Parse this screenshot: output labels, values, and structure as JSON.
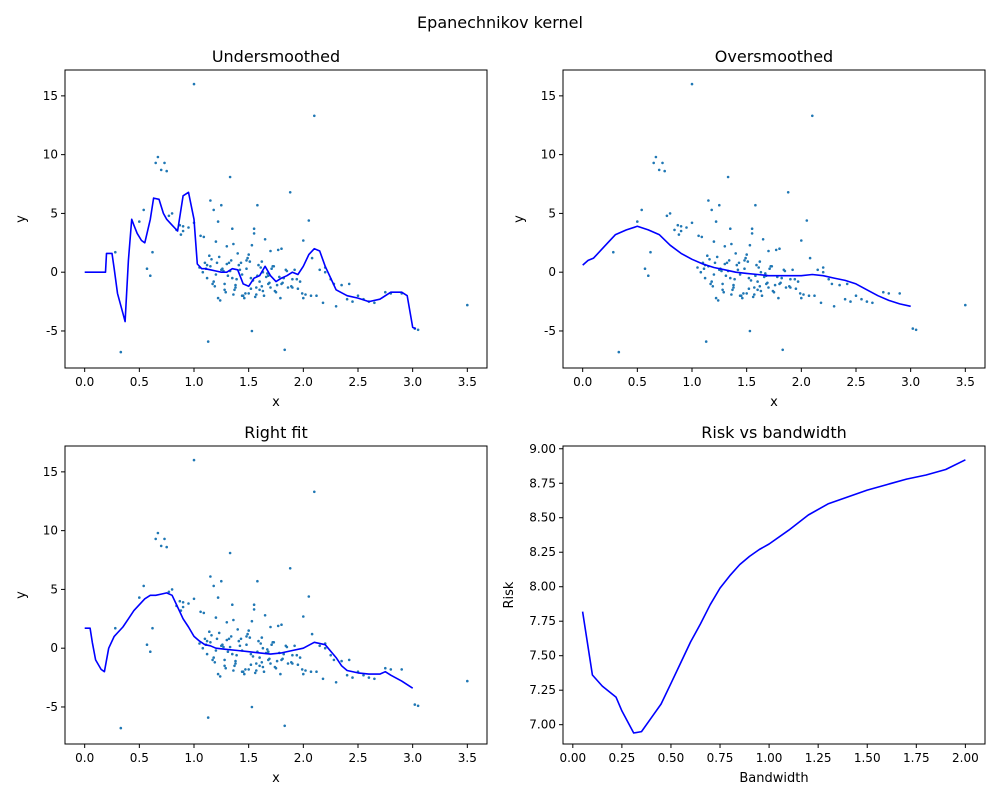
{
  "figure": {
    "suptitle": "Epanechnikov kernel"
  },
  "colors": {
    "fit_line": "#0000ff",
    "scatter": "#1f77b4",
    "risk_line": "#0000ff",
    "axes": "#000000"
  },
  "chart_data": [
    {
      "type": "scatter",
      "title": "Undersmoothed",
      "xlabel": "x",
      "ylabel": "y",
      "xlim": [
        -0.18,
        3.68
      ],
      "ylim": [
        -8.15,
        17.2
      ],
      "xticks": [
        0.0,
        0.5,
        1.0,
        1.5,
        2.0,
        2.5,
        3.0,
        3.5
      ],
      "yticks": [
        -5,
        0,
        5,
        10,
        15
      ],
      "grid": false,
      "series": [
        {
          "type": "scatter",
          "data_ref": "observations"
        },
        {
          "type": "line",
          "x": [
            0.0,
            0.19,
            0.2,
            0.25,
            0.27,
            0.3,
            0.35,
            0.37,
            0.4,
            0.43,
            0.45,
            0.48,
            0.52,
            0.55,
            0.6,
            0.63,
            0.68,
            0.72,
            0.75,
            0.8,
            0.85,
            0.9,
            0.95,
            1.0,
            1.03,
            1.07,
            1.1,
            1.15,
            1.2,
            1.25,
            1.3,
            1.35,
            1.4,
            1.45,
            1.5,
            1.55,
            1.6,
            1.65,
            1.7,
            1.75,
            1.8,
            1.85,
            1.9,
            1.95,
            2.0,
            2.05,
            2.1,
            2.15,
            2.2,
            2.25,
            2.3,
            2.4,
            2.5,
            2.6,
            2.7,
            2.8,
            2.9,
            2.95,
            3.0,
            3.03
          ],
          "y": [
            0.0,
            0.0,
            1.6,
            1.6,
            0.3,
            -1.8,
            -3.5,
            -4.2,
            1.0,
            4.5,
            4.0,
            3.3,
            2.7,
            2.5,
            4.5,
            6.3,
            6.2,
            5.0,
            4.5,
            4.0,
            3.5,
            6.5,
            6.8,
            4.5,
            0.7,
            0.3,
            0.3,
            0.2,
            0.1,
            0.0,
            0.0,
            0.3,
            0.2,
            -1.0,
            -1.2,
            -0.5,
            -0.3,
            0.5,
            -0.3,
            -0.8,
            -0.5,
            -0.3,
            0.0,
            -0.2,
            0.5,
            1.5,
            2.0,
            1.8,
            0.5,
            -0.5,
            -1.5,
            -2.0,
            -2.2,
            -2.5,
            -2.3,
            -1.7,
            -1.7,
            -2.0,
            -4.7,
            -4.8
          ]
        }
      ]
    },
    {
      "type": "scatter",
      "title": "Oversmoothed",
      "xlabel": "x",
      "ylabel": "y",
      "xlim": [
        -0.18,
        3.68
      ],
      "ylim": [
        -8.15,
        17.2
      ],
      "xticks": [
        0.0,
        0.5,
        1.0,
        1.5,
        2.0,
        2.5,
        3.0,
        3.5
      ],
      "yticks": [
        -5,
        0,
        5,
        10,
        15
      ],
      "grid": false,
      "series": [
        {
          "type": "scatter",
          "data_ref": "observations"
        },
        {
          "type": "line",
          "x": [
            0.0,
            0.05,
            0.1,
            0.2,
            0.3,
            0.4,
            0.5,
            0.6,
            0.7,
            0.8,
            0.9,
            1.0,
            1.1,
            1.2,
            1.3,
            1.4,
            1.5,
            1.6,
            1.7,
            1.8,
            1.9,
            2.0,
            2.1,
            2.2,
            2.3,
            2.4,
            2.5,
            2.6,
            2.7,
            2.8,
            2.9,
            3.0
          ],
          "y": [
            0.6,
            1.0,
            1.2,
            2.2,
            3.2,
            3.6,
            3.9,
            3.6,
            3.2,
            2.3,
            1.6,
            1.1,
            0.7,
            0.4,
            0.2,
            0.0,
            -0.1,
            -0.2,
            -0.3,
            -0.3,
            -0.3,
            -0.3,
            -0.2,
            -0.3,
            -0.5,
            -0.7,
            -1.0,
            -1.5,
            -2.0,
            -2.4,
            -2.7,
            -2.9
          ]
        }
      ]
    },
    {
      "type": "scatter",
      "title": "Right fit",
      "xlabel": "x",
      "ylabel": "y",
      "xlim": [
        -0.18,
        3.68
      ],
      "ylim": [
        -8.15,
        17.2
      ],
      "xticks": [
        0.0,
        0.5,
        1.0,
        1.5,
        2.0,
        2.5,
        3.0,
        3.5
      ],
      "yticks": [
        -5,
        0,
        5,
        10,
        15
      ],
      "grid": false,
      "series": [
        {
          "type": "scatter",
          "data_ref": "observations"
        },
        {
          "type": "line",
          "x": [
            0.0,
            0.05,
            0.07,
            0.1,
            0.15,
            0.18,
            0.22,
            0.27,
            0.35,
            0.45,
            0.55,
            0.6,
            0.65,
            0.7,
            0.75,
            0.8,
            0.85,
            0.9,
            0.95,
            1.0,
            1.05,
            1.1,
            1.15,
            1.2,
            1.3,
            1.4,
            1.5,
            1.6,
            1.7,
            1.8,
            1.9,
            2.0,
            2.1,
            2.2,
            2.3,
            2.35,
            2.4,
            2.5,
            2.6,
            2.7,
            2.75,
            2.8,
            2.9,
            3.0
          ],
          "y": [
            1.7,
            1.7,
            0.5,
            -1.0,
            -1.8,
            -2.0,
            0.0,
            1.0,
            1.8,
            3.2,
            4.2,
            4.5,
            4.5,
            4.6,
            4.7,
            4.5,
            3.5,
            2.5,
            1.8,
            1.0,
            0.6,
            0.3,
            0.2,
            0.0,
            -0.1,
            -0.2,
            -0.3,
            -0.4,
            -0.5,
            -0.4,
            -0.2,
            0.0,
            0.5,
            0.3,
            -0.8,
            -1.5,
            -1.9,
            -2.1,
            -2.2,
            -2.2,
            -2.0,
            -2.3,
            -2.8,
            -3.4
          ]
        }
      ]
    },
    {
      "type": "line",
      "title": "Risk vs bandwidth",
      "xlabel": "Bandwidth",
      "ylabel": "Risk",
      "xlim": [
        -0.05,
        2.1
      ],
      "ylim": [
        6.86,
        9.02
      ],
      "xticks": [
        0.0,
        0.25,
        0.5,
        0.75,
        1.0,
        1.25,
        1.5,
        1.75,
        2.0
      ],
      "yticks": [
        7.0,
        7.25,
        7.5,
        7.75,
        8.0,
        8.25,
        8.5,
        8.75,
        9.0
      ],
      "grid": false,
      "series": [
        {
          "type": "line",
          "x": [
            0.05,
            0.1,
            0.15,
            0.22,
            0.25,
            0.31,
            0.35,
            0.4,
            0.45,
            0.5,
            0.55,
            0.6,
            0.65,
            0.7,
            0.75,
            0.8,
            0.85,
            0.9,
            0.95,
            1.0,
            1.1,
            1.2,
            1.3,
            1.4,
            1.5,
            1.6,
            1.7,
            1.8,
            1.9,
            2.0
          ],
          "y": [
            7.82,
            7.36,
            7.28,
            7.2,
            7.1,
            6.94,
            6.95,
            7.05,
            7.15,
            7.3,
            7.45,
            7.6,
            7.73,
            7.87,
            7.99,
            8.08,
            8.16,
            8.22,
            8.27,
            8.31,
            8.41,
            8.52,
            8.6,
            8.65,
            8.7,
            8.74,
            8.78,
            8.81,
            8.85,
            8.92
          ]
        }
      ]
    }
  ],
  "observations": {
    "x": [
      0.28,
      0.33,
      0.5,
      0.54,
      0.57,
      0.62,
      0.65,
      0.67,
      0.7,
      0.73,
      0.75,
      0.77,
      0.8,
      0.84,
      0.87,
      0.88,
      0.9,
      0.9,
      1.0,
      1.0,
      1.1,
      1.13,
      1.15,
      1.15,
      1.18,
      1.2,
      1.22,
      1.25,
      1.28,
      1.3,
      1.33,
      1.35,
      1.35,
      1.38,
      1.4,
      1.45,
      1.5,
      1.53,
      1.55,
      1.58,
      1.6,
      1.62,
      1.65,
      1.68,
      1.7,
      1.75,
      1.8,
      1.83,
      1.88,
      1.9,
      1.95,
      2.0,
      2.05,
      2.08,
      2.1,
      2.12,
      2.2,
      2.25,
      2.3,
      2.35,
      2.4,
      2.45,
      2.5,
      2.55,
      2.6,
      2.65,
      2.75,
      2.8,
      2.9,
      3.02,
      3.05,
      3.5,
      1.05,
      1.08,
      1.12,
      1.16,
      1.19,
      1.22,
      1.26,
      1.29,
      1.32,
      1.36,
      1.39,
      1.42,
      1.46,
      1.49,
      1.52,
      1.56,
      1.59,
      1.63,
      1.66,
      1.69,
      1.72,
      1.76,
      1.79,
      1.82,
      1.86,
      1.92,
      1.97,
      2.02,
      1.11,
      1.14,
      1.17,
      1.21,
      1.24,
      1.27,
      1.31,
      1.34,
      1.37,
      1.41,
      1.44,
      1.47,
      1.51,
      1.54,
      1.57,
      1.61,
      1.64,
      1.67,
      1.71,
      1.74,
      1.78,
      1.81,
      1.85,
      1.89,
      1.94,
      1.99,
      2.15,
      2.28,
      1.06,
      1.09,
      1.23,
      1.43,
      1.48,
      1.53,
      1.58,
      1.62,
      1.68,
      1.73,
      1.84,
      0.6,
      0.95,
      1.2,
      1.25,
      1.3,
      1.36,
      1.5,
      1.55,
      1.6,
      1.77,
      2.07,
      2.2,
      2.42,
      1.12,
      1.18,
      1.28,
      1.33,
      1.38,
      1.44,
      1.48,
      1.52,
      1.57,
      1.63,
      1.7,
      1.8,
      1.9,
      2.0,
      2.18
    ],
    "y": [
      1.7,
      -6.8,
      4.3,
      5.3,
      0.3,
      1.7,
      9.3,
      9.8,
      8.7,
      9.3,
      8.6,
      4.8,
      5.0,
      3.6,
      4.0,
      3.2,
      3.9,
      3.5,
      16.0,
      4.2,
      0.8,
      -5.9,
      6.1,
      0.5,
      5.3,
      -0.2,
      4.3,
      5.7,
      -1.0,
      2.2,
      8.1,
      3.7,
      -0.5,
      -1.3,
      1.6,
      -2.0,
      -1.8,
      -5.0,
      3.3,
      5.7,
      -1.5,
      -1.2,
      2.8,
      -0.3,
      1.8,
      -1.7,
      2.0,
      -6.6,
      6.8,
      -0.6,
      -1.4,
      2.7,
      4.4,
      1.2,
      13.3,
      -2.0,
      0.4,
      -0.6,
      -2.9,
      -1.1,
      -2.3,
      -2.5,
      -2.0,
      -2.3,
      -2.5,
      -2.6,
      -1.7,
      -1.8,
      -1.8,
      -4.8,
      -4.9,
      -2.8,
      0.4,
      0.0,
      -0.5,
      1.1,
      -1.2,
      -2.2,
      0.3,
      -1.7,
      0.8,
      -1.9,
      -0.6,
      0.2,
      -2.2,
      1.2,
      -1.4,
      -2.1,
      0.6,
      -1.6,
      -0.4,
      -0.9,
      0.5,
      -1.1,
      -2.2,
      -0.5,
      -1.3,
      0.2,
      -0.8,
      -1.9,
      0.3,
      1.4,
      -1.0,
      0.8,
      -2.4,
      0.1,
      -0.3,
      1.0,
      -1.5,
      0.6,
      -0.2,
      -1.8,
      0.9,
      -0.7,
      -1.3,
      0.4,
      -2.0,
      -0.1,
      0.3,
      -1.6,
      -0.4,
      -0.9,
      0.1,
      -1.2,
      -0.6,
      -1.8,
      0.2,
      -1.0,
      3.1,
      3.0,
      1.3,
      0.8,
      1.0,
      2.3,
      -0.3,
      0.9,
      -1.0,
      0.5,
      0.2,
      -0.3,
      3.8,
      2.6,
      0.2,
      0.7,
      2.4,
      1.5,
      3.7,
      -0.8,
      1.9,
      -2.0,
      0.0,
      -1.0,
      0.6,
      -0.8,
      -1.5,
      0.1,
      -1.1,
      -2.0,
      0.3,
      -0.5,
      -1.9,
      0.0,
      -1.3,
      -1.0,
      -1.3,
      -2.2,
      -2.6
    ]
  }
}
